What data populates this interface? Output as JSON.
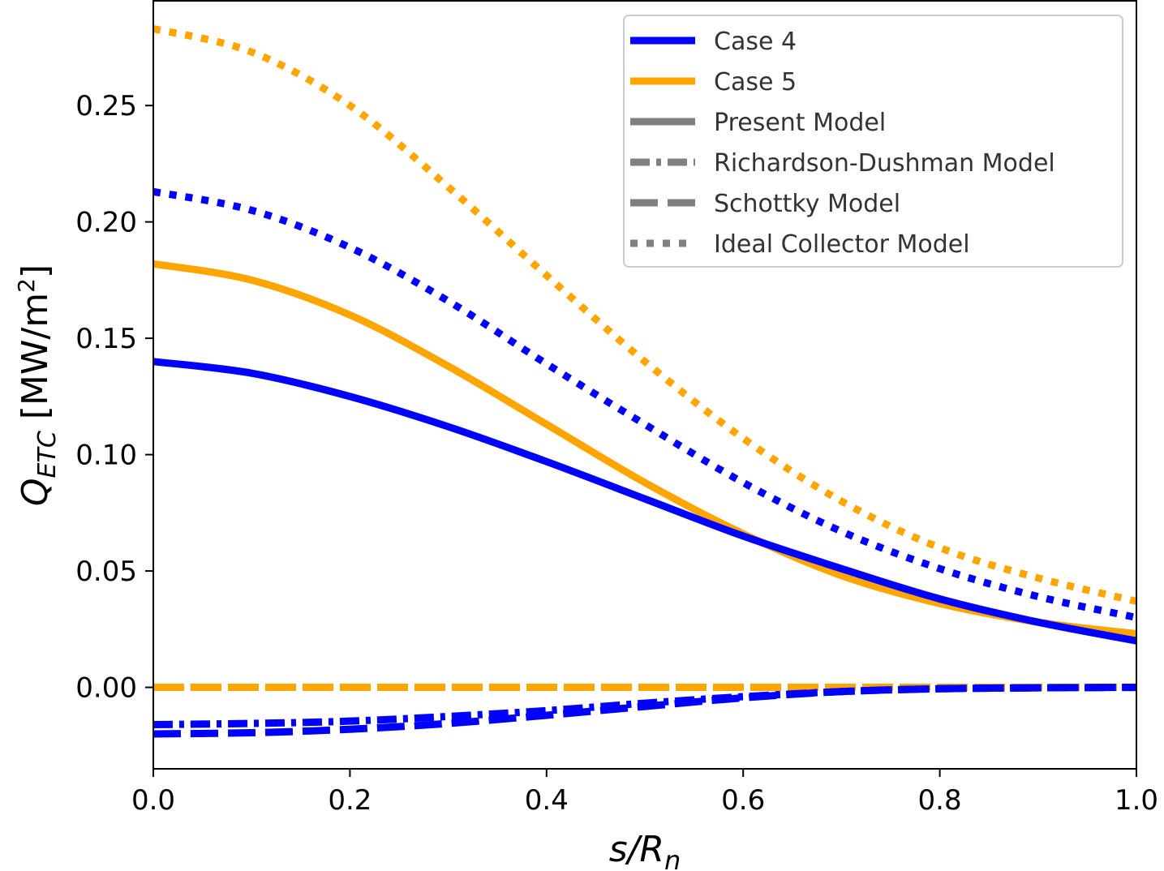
{
  "chart_data": {
    "type": "line",
    "xlabel": {
      "main": "s/R",
      "sub": "n"
    },
    "ylabel": {
      "main": "Q",
      "sub": "ETC",
      "unit_pre": " [MW/m",
      "unit_sup": "2",
      "unit_post": "]"
    },
    "xlim": [
      0.0,
      1.0
    ],
    "ylim": [
      -0.035,
      0.295
    ],
    "xticks": [
      0.0,
      0.2,
      0.4,
      0.6,
      0.8,
      1.0
    ],
    "xtick_labels": [
      "0.0",
      "0.2",
      "0.4",
      "0.6",
      "0.8",
      "1.0"
    ],
    "yticks": [
      0.0,
      0.05,
      0.1,
      0.15,
      0.2,
      0.25
    ],
    "ytick_labels": [
      "0.00",
      "0.05",
      "0.10",
      "0.15",
      "0.20",
      "0.25"
    ],
    "grid": false,
    "legend_position": "top-right",
    "legend": [
      {
        "label": "Case 4",
        "color": "#0000ff",
        "style": "solid"
      },
      {
        "label": "Case 5",
        "color": "#ffa500",
        "style": "solid"
      },
      {
        "label": "Present Model",
        "color": "#808080",
        "style": "solid"
      },
      {
        "label": "Richardson-Dushman Model",
        "color": "#808080",
        "style": "dashdot"
      },
      {
        "label": "Schottky Model",
        "color": "#808080",
        "style": "dashed"
      },
      {
        "label": "Ideal Collector Model",
        "color": "#808080",
        "style": "dotted"
      }
    ],
    "x": [
      0.0,
      0.1,
      0.2,
      0.3,
      0.4,
      0.5,
      0.6,
      0.7,
      0.8,
      0.9,
      1.0
    ],
    "series": [
      {
        "case": "Case 5",
        "model": "Ideal Collector Model",
        "color": "#ffa500",
        "style": "dotted",
        "values": [
          0.283,
          0.273,
          0.25,
          0.215,
          0.177,
          0.14,
          0.107,
          0.08,
          0.06,
          0.047,
          0.037
        ]
      },
      {
        "case": "Case 4",
        "model": "Ideal Collector Model",
        "color": "#0000ff",
        "style": "dotted",
        "values": [
          0.213,
          0.205,
          0.189,
          0.166,
          0.139,
          0.113,
          0.088,
          0.067,
          0.051,
          0.039,
          0.03
        ]
      },
      {
        "case": "Case 5",
        "model": "Present Model",
        "color": "#ffa500",
        "style": "solid",
        "values": [
          0.182,
          0.175,
          0.16,
          0.138,
          0.113,
          0.088,
          0.066,
          0.048,
          0.036,
          0.028,
          0.023
        ]
      },
      {
        "case": "Case 4",
        "model": "Present Model",
        "color": "#0000ff",
        "style": "solid",
        "values": [
          0.14,
          0.135,
          0.125,
          0.112,
          0.097,
          0.081,
          0.065,
          0.051,
          0.038,
          0.028,
          0.02
        ]
      },
      {
        "case": "Case 5",
        "model": "Richardson-Dushman Model",
        "color": "#ffa500",
        "style": "dashdot",
        "values": [
          0.0,
          0.0,
          0.0,
          0.0,
          0.0,
          0.0,
          0.0,
          0.0,
          0.0,
          0.0,
          0.0
        ]
      },
      {
        "case": "Case 5",
        "model": "Schottky Model",
        "color": "#ffa500",
        "style": "dashed",
        "values": [
          0.0,
          0.0,
          0.0,
          0.0,
          0.0,
          0.0,
          0.0,
          0.0,
          0.0,
          0.0,
          0.0
        ]
      },
      {
        "case": "Case 4",
        "model": "Richardson-Dushman Model",
        "color": "#0000ff",
        "style": "dashdot",
        "values": [
          -0.016,
          -0.0155,
          -0.0145,
          -0.0125,
          -0.01,
          -0.0068,
          -0.004,
          -0.0018,
          -0.0006,
          -0.0002,
          0.0
        ]
      },
      {
        "case": "Case 4",
        "model": "Schottky Model",
        "color": "#0000ff",
        "style": "dashed",
        "values": [
          -0.02,
          -0.0195,
          -0.018,
          -0.0155,
          -0.012,
          -0.0082,
          -0.0045,
          -0.0018,
          -0.0006,
          -0.0002,
          0.0
        ]
      }
    ]
  }
}
